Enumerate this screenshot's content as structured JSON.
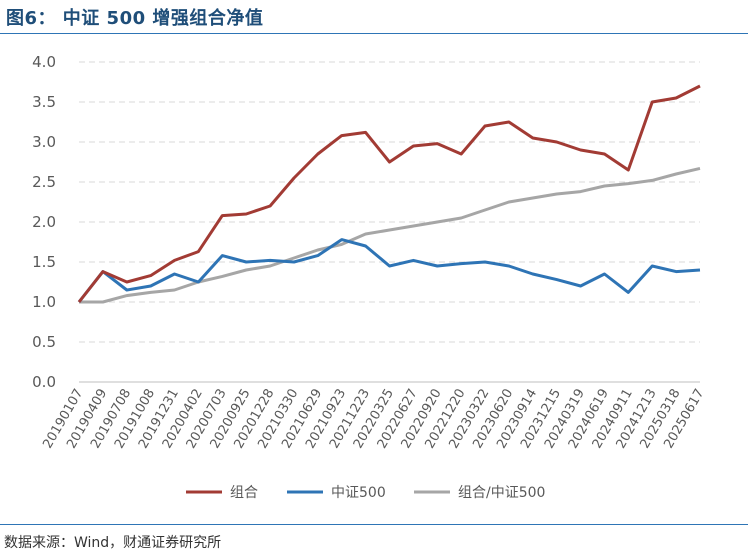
{
  "header": {
    "title": "图6：   中证 500 增强组合净值"
  },
  "footer": {
    "source": "数据来源：Wind，财通证券研究所"
  },
  "colors": {
    "portfolio": "#a23b34",
    "csi500": "#2e74b5",
    "ratio": "#a6a6a6",
    "title": "#1f4e79",
    "rule": "#2e75b6",
    "gridline": "#d9d9d9"
  },
  "chart_data": {
    "type": "line",
    "title": "",
    "xlabel": "",
    "ylabel": "",
    "ylim": [
      0.0,
      4.0
    ],
    "yticks": [
      "0.0",
      "0.5",
      "1.0",
      "1.5",
      "2.0",
      "2.5",
      "3.0",
      "3.5",
      "4.0"
    ],
    "grid": "horizontal dashed",
    "legend": "bottom-center",
    "x": [
      "20190107",
      "20190409",
      "20190708",
      "20191008",
      "20191231",
      "20200402",
      "20200703",
      "20200925",
      "20201228",
      "20210330",
      "20210629",
      "20210923",
      "20211223",
      "20220325",
      "20220627",
      "20220920",
      "20221220",
      "20230322",
      "20230620",
      "20230914",
      "20231215",
      "20240319",
      "20240619",
      "20240911",
      "20241213",
      "20250318",
      "20250617"
    ],
    "series": [
      {
        "name": "组合",
        "values": [
          1.0,
          1.38,
          1.25,
          1.33,
          1.52,
          1.63,
          2.08,
          2.1,
          2.2,
          2.55,
          2.85,
          3.08,
          3.12,
          2.75,
          2.95,
          2.98,
          2.85,
          3.2,
          3.25,
          3.05,
          3.0,
          2.9,
          2.85,
          2.65,
          3.5,
          3.55,
          3.7
        ]
      },
      {
        "name": "中证500",
        "values": [
          1.0,
          1.38,
          1.15,
          1.2,
          1.35,
          1.25,
          1.58,
          1.5,
          1.52,
          1.5,
          1.58,
          1.78,
          1.7,
          1.45,
          1.52,
          1.45,
          1.48,
          1.5,
          1.45,
          1.35,
          1.28,
          1.2,
          1.35,
          1.12,
          1.45,
          1.38,
          1.4
        ]
      },
      {
        "name": "组合/中证500",
        "values": [
          1.0,
          1.0,
          1.08,
          1.12,
          1.15,
          1.25,
          1.32,
          1.4,
          1.45,
          1.55,
          1.65,
          1.72,
          1.85,
          1.9,
          1.95,
          2.0,
          2.05,
          2.15,
          2.25,
          2.3,
          2.35,
          2.38,
          2.45,
          2.48,
          2.52,
          2.6,
          2.67
        ]
      }
    ]
  }
}
